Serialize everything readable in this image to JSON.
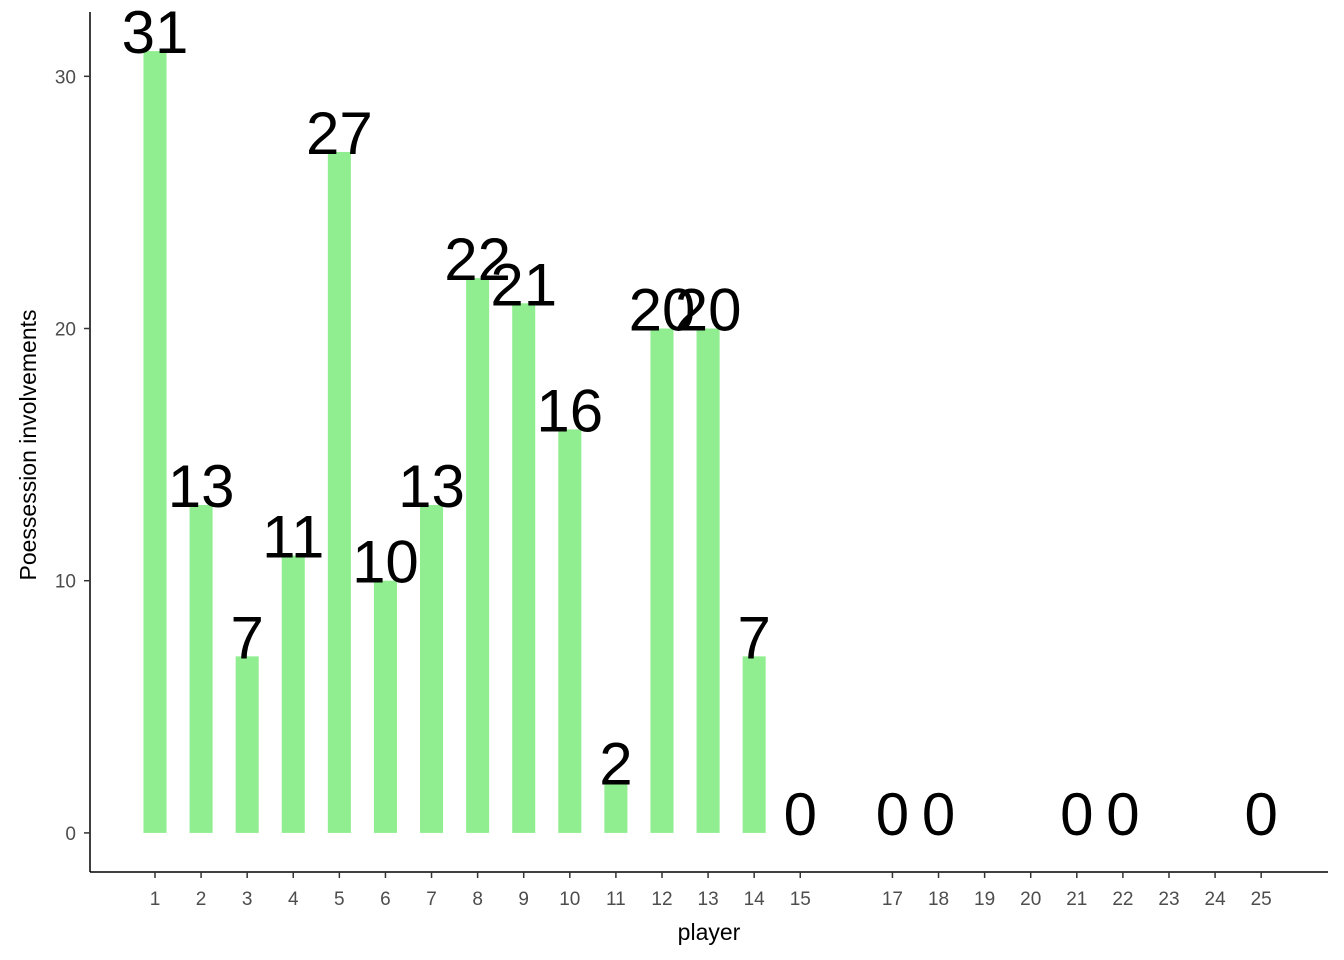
{
  "chart_data": {
    "type": "bar",
    "x": [
      1,
      2,
      3,
      4,
      5,
      6,
      7,
      8,
      9,
      10,
      11,
      12,
      13,
      14,
      15,
      17,
      18,
      21,
      22,
      25
    ],
    "values": [
      31,
      13,
      7,
      11,
      27,
      10,
      13,
      22,
      21,
      16,
      2,
      20,
      20,
      7,
      0,
      0,
      0,
      0,
      0,
      0
    ],
    "color": "#90ee90",
    "x_label": "player",
    "y_label": "Poessession involvements",
    "xlim": [
      -0.41,
      26.45
    ],
    "ylim": [
      -1.55,
      32.55
    ],
    "xticks": [
      1,
      2,
      3,
      4,
      5,
      6,
      7,
      8,
      9,
      10,
      11,
      12,
      13,
      14,
      15,
      17,
      18,
      19,
      20,
      21,
      22,
      23,
      24,
      25
    ],
    "yticks": [
      0,
      10,
      20,
      30
    ],
    "grid": false
  }
}
